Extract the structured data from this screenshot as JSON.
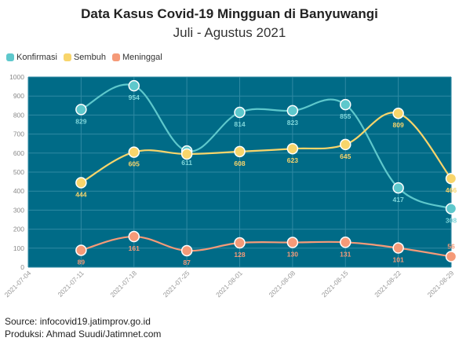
{
  "header": {
    "title": "Data Kasus Covid-19 Mingguan di Banyuwangi",
    "subtitle": "Juli - Agustus 2021"
  },
  "footer": {
    "source": "Source: infocovid19.jatimprov.go.id",
    "credit": "Produksi: Ahmad Suudi/Jatimnet.com"
  },
  "chart_data": {
    "type": "line",
    "title": "Data Kasus Covid-19 Mingguan di Banyuwangi",
    "subtitle": "Juli - Agustus 2021",
    "x_ticks": [
      "2021-07-04",
      "2021-07-11",
      "2021-07-18",
      "2021-07-25",
      "2021-08-01",
      "2021-08-08",
      "2021-08-15",
      "2021-08-22",
      "2021-08-29"
    ],
    "ylim": [
      0,
      1000
    ],
    "y_ticks": [
      0,
      100,
      200,
      300,
      400,
      500,
      600,
      700,
      800,
      900,
      1000
    ],
    "grid": true,
    "legend_position": "top-left",
    "background_color": "#006b87",
    "series": [
      {
        "name": "Konfirmasi",
        "color": "#5ec8cc",
        "points": [
          {
            "x": "2021-07-11",
            "y": 829
          },
          {
            "x": "2021-07-18",
            "y": 954
          },
          {
            "x": "2021-07-25",
            "y": 611
          },
          {
            "x": "2021-08-01",
            "y": 814
          },
          {
            "x": "2021-08-08",
            "y": 823
          },
          {
            "x": "2021-08-15",
            "y": 855
          },
          {
            "x": "2021-08-22",
            "y": 417
          },
          {
            "x": "2021-08-29",
            "y": 308
          }
        ]
      },
      {
        "name": "Sembuh",
        "color": "#f8d56b",
        "points": [
          {
            "x": "2021-07-11",
            "y": 444
          },
          {
            "x": "2021-07-18",
            "y": 605
          },
          {
            "x": "2021-07-25",
            "y": 595
          },
          {
            "x": "2021-08-01",
            "y": 608
          },
          {
            "x": "2021-08-08",
            "y": 623
          },
          {
            "x": "2021-08-15",
            "y": 645
          },
          {
            "x": "2021-08-22",
            "y": 809
          },
          {
            "x": "2021-08-29",
            "y": 466
          }
        ]
      },
      {
        "name": "Meninggal",
        "color": "#f59a78",
        "points": [
          {
            "x": "2021-07-11",
            "y": 89
          },
          {
            "x": "2021-07-18",
            "y": 161
          },
          {
            "x": "2021-07-25",
            "y": 87
          },
          {
            "x": "2021-08-01",
            "y": 128
          },
          {
            "x": "2021-08-08",
            "y": 130
          },
          {
            "x": "2021-08-15",
            "y": 131
          },
          {
            "x": "2021-08-22",
            "y": 101
          },
          {
            "x": "2021-08-29",
            "y": 56
          }
        ]
      }
    ]
  }
}
